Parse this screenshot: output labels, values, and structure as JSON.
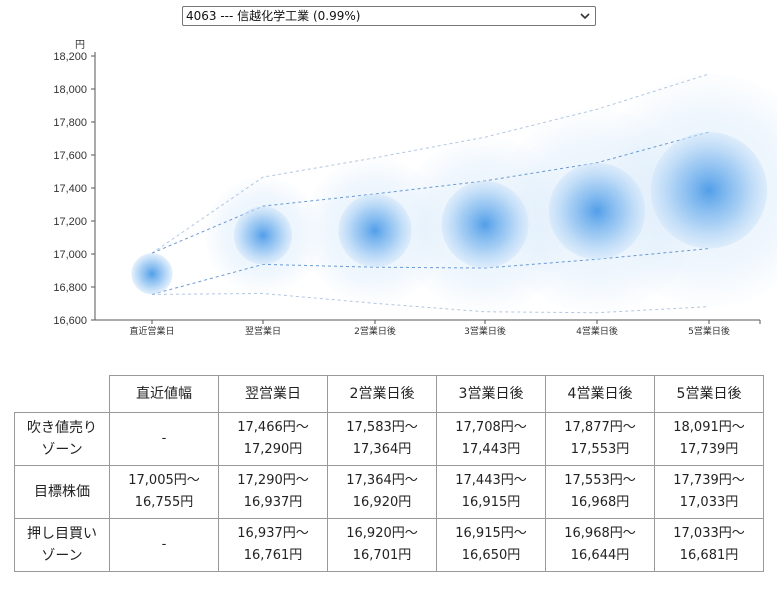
{
  "selector": {
    "selected": "4063 --- 信越化学工業 (0.99%)"
  },
  "chart_data": {
    "type": "bubble",
    "unit_label": "円",
    "categories": [
      "直近営業日",
      "翌営業日",
      "2営業日後",
      "3営業日後",
      "4営業日後",
      "5営業日後"
    ],
    "ylim": [
      16600,
      18200
    ],
    "yticks": [
      "16,600",
      "16,800",
      "17,000",
      "17,200",
      "17,400",
      "17,600",
      "17,800",
      "18,000",
      "18,200"
    ],
    "ytick_values": [
      16600,
      16800,
      17000,
      17200,
      17400,
      17600,
      17800,
      18000,
      18200
    ],
    "center": [
      16880,
      17113,
      17142,
      17179,
      17260,
      17386
    ],
    "inner_upper": [
      17005,
      17290,
      17364,
      17443,
      17553,
      17739
    ],
    "inner_lower": [
      16755,
      16937,
      16920,
      16915,
      16968,
      17033
    ],
    "outer_upper": [
      17005,
      17466,
      17583,
      17708,
      17877,
      18091
    ],
    "outer_lower": [
      16755,
      16761,
      16701,
      16650,
      16644,
      16681
    ],
    "colors": {
      "bubble": "#4a9ae8",
      "line": "#5b8fd0"
    }
  },
  "table": {
    "headers": [
      "直近値幅",
      "翌営業日",
      "2営業日後",
      "3営業日後",
      "4営業日後",
      "5営業日後"
    ],
    "rows": [
      {
        "label": [
          "吹き値売り",
          "ゾーン"
        ],
        "cells": [
          [
            "-"
          ],
          [
            "17,466円〜",
            "17,290円"
          ],
          [
            "17,583円〜",
            "17,364円"
          ],
          [
            "17,708円〜",
            "17,443円"
          ],
          [
            "17,877円〜",
            "17,553円"
          ],
          [
            "18,091円〜",
            "17,739円"
          ]
        ]
      },
      {
        "label": [
          "目標株価"
        ],
        "cells": [
          [
            "17,005円〜",
            "16,755円"
          ],
          [
            "17,290円〜",
            "16,937円"
          ],
          [
            "17,364円〜",
            "16,920円"
          ],
          [
            "17,443円〜",
            "16,915円"
          ],
          [
            "17,553円〜",
            "16,968円"
          ],
          [
            "17,739円〜",
            "17,033円"
          ]
        ]
      },
      {
        "label": [
          "押し目買い",
          "ゾーン"
        ],
        "cells": [
          [
            "-"
          ],
          [
            "16,937円〜",
            "16,761円"
          ],
          [
            "16,920円〜",
            "16,701円"
          ],
          [
            "16,915円〜",
            "16,650円"
          ],
          [
            "16,968円〜",
            "16,644円"
          ],
          [
            "17,033円〜",
            "16,681円"
          ]
        ]
      }
    ]
  }
}
